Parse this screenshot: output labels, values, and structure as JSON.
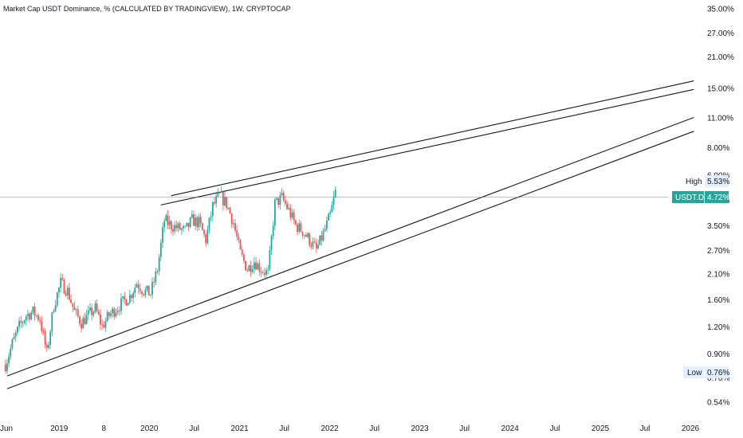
{
  "header": {
    "title": "Market Cap USDT Dominance, % (CALCULATED BY TRADINGVIEW), 1W, CRYPTOCAP"
  },
  "chart_data": {
    "type": "candlestick",
    "symbol": "USDT.D",
    "interval": "1W",
    "y_scale": "log",
    "ylim": [
      0.52,
      36
    ],
    "y_ticks": [
      "35.00%",
      "27.00%",
      "21.00%",
      "15.00%",
      "11.00%",
      "8.00%",
      "6.00%",
      "4.60%",
      "3.50%",
      "2.70%",
      "2.10%",
      "1.60%",
      "1.20%",
      "0.90%",
      "0.70%",
      "0.54%"
    ],
    "y_tick_values": [
      35,
      27,
      21,
      15,
      11,
      8,
      6,
      4.6,
      3.5,
      2.7,
      2.1,
      1.6,
      1.2,
      0.9,
      0.7,
      0.54
    ],
    "x_ticks": [
      "Jun",
      "2019",
      "8",
      "2020",
      "Jul",
      "2021",
      "Jul",
      "2022",
      "Jul",
      "2023",
      "Jul",
      "2024",
      "Jul",
      "2025",
      "Jul",
      "2026"
    ],
    "x_tick_dates": [
      "2018-06-01",
      "2019-01-01",
      "2019-07-01",
      "2020-01-01",
      "2020-07-01",
      "2021-01-01",
      "2021-07-01",
      "2022-01-01",
      "2022-07-01",
      "2023-01-01",
      "2023-07-01",
      "2024-01-01",
      "2024-07-01",
      "2025-01-01",
      "2025-07-01",
      "2026-01-01"
    ],
    "last_value_label": "USDT.D",
    "last_value": "4.72%",
    "high_label": "High",
    "high_value": "5.53%",
    "low_label": "Low",
    "low_value": "0.76%",
    "colors": {
      "up": "#26a69a",
      "down": "#ef5350",
      "last_tag": "#26a69a",
      "trendline": "#131722",
      "price_line": "#26a69a"
    },
    "close_series": {
      "dates": [
        "2018-05-28",
        "2018-06-25",
        "2018-07-23",
        "2018-08-20",
        "2018-09-17",
        "2018-10-15",
        "2018-11-12",
        "2018-12-10",
        "2019-01-07",
        "2019-02-04",
        "2019-03-04",
        "2019-04-01",
        "2019-04-29",
        "2019-05-27",
        "2019-06-24",
        "2019-07-22",
        "2019-08-19",
        "2019-09-16",
        "2019-10-14",
        "2019-11-11",
        "2019-12-09",
        "2020-01-06",
        "2020-02-03",
        "2020-03-02",
        "2020-03-30",
        "2020-04-27",
        "2020-05-25",
        "2020-06-22",
        "2020-07-20",
        "2020-08-17",
        "2020-09-14",
        "2020-10-12",
        "2020-11-09",
        "2020-12-07",
        "2021-01-04",
        "2021-02-01",
        "2021-03-01",
        "2021-03-29",
        "2021-04-26",
        "2021-05-24",
        "2021-06-21",
        "2021-07-19",
        "2021-08-16",
        "2021-09-13",
        "2021-10-11",
        "2021-11-08",
        "2021-12-06",
        "2022-01-03",
        "2022-01-24"
      ],
      "close": [
        0.8,
        1.0,
        1.2,
        1.35,
        1.4,
        1.3,
        0.9,
        1.5,
        1.9,
        1.75,
        1.4,
        1.25,
        1.35,
        1.45,
        1.2,
        1.35,
        1.45,
        1.55,
        1.65,
        1.9,
        1.75,
        1.7,
        2.2,
        3.7,
        3.5,
        3.4,
        3.3,
        3.7,
        3.6,
        3.0,
        4.3,
        4.8,
        4.4,
        3.6,
        2.6,
        2.2,
        2.4,
        2.2,
        2.1,
        4.4,
        4.7,
        4.1,
        3.5,
        3.3,
        3.0,
        2.7,
        3.2,
        3.9,
        5.0
      ]
    },
    "trendlines": [
      {
        "from": [
          "2020-02-17",
          4.35
        ],
        "to": [
          "2026-01-15",
          14.8
        ]
      },
      {
        "from": [
          "2020-03-30",
          4.8
        ],
        "to": [
          "2026-01-15",
          16.2
        ]
      },
      {
        "from": [
          "2018-06-04",
          0.71
        ],
        "to": [
          "2026-01-15",
          11.0
        ]
      },
      {
        "from": [
          "2018-06-04",
          0.62
        ],
        "to": [
          "2026-01-15",
          9.5
        ]
      }
    ]
  }
}
